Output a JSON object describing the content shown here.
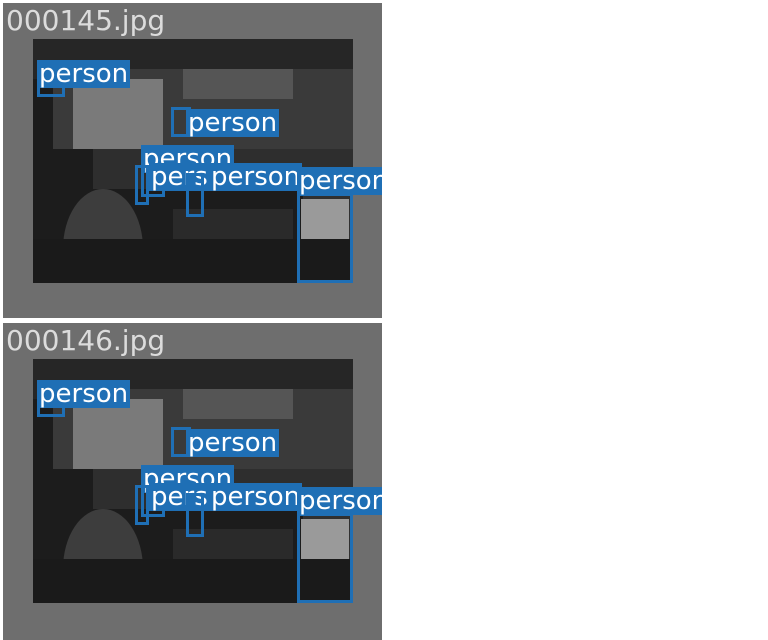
{
  "images": [
    {
      "filename": "000145.jpg"
    },
    {
      "filename": "000146.jpg"
    }
  ],
  "detections": [
    {
      "label": "person"
    },
    {
      "label": "person"
    },
    {
      "label": "person"
    },
    {
      "label": "person"
    },
    {
      "label": "person"
    },
    {
      "label": "person"
    },
    {
      "label": "person"
    },
    {
      "label": "person"
    }
  ],
  "colors": {
    "box": "#1f6fb5",
    "tile_bg": "#6e6e6e",
    "filename_text": "#dcdcdc"
  }
}
